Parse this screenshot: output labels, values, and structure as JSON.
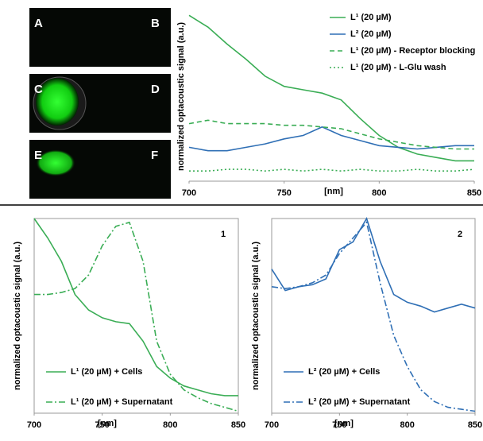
{
  "panels": {
    "labels": [
      "A",
      "B",
      "C",
      "D",
      "E",
      "F"
    ]
  },
  "chart_data": [
    {
      "type": "line",
      "y_label": "normalized optacoustic signal (a.u.)",
      "x_label": "[nm]",
      "xlim": [
        700,
        850
      ],
      "xticks": [
        700,
        750,
        800,
        850
      ],
      "ylim": [
        0,
        1
      ],
      "legend": "upper right",
      "x": [
        700,
        710,
        720,
        730,
        740,
        750,
        760,
        770,
        780,
        790,
        800,
        810,
        820,
        830,
        840,
        850
      ],
      "series": [
        {
          "name": "L¹ (20 µM)",
          "color": "#3aad55",
          "dash": "solid",
          "values": [
            0.98,
            0.91,
            0.81,
            0.72,
            0.62,
            0.56,
            0.54,
            0.52,
            0.48,
            0.37,
            0.27,
            0.2,
            0.16,
            0.14,
            0.12,
            0.12
          ]
        },
        {
          "name": "L² (20 µM)",
          "color": "#2f6fb5",
          "dash": "solid",
          "values": [
            0.2,
            0.18,
            0.18,
            0.2,
            0.22,
            0.25,
            0.27,
            0.32,
            0.27,
            0.24,
            0.21,
            0.2,
            0.19,
            0.2,
            0.21,
            0.21
          ]
        },
        {
          "name": "L¹ (20 µM) - Receptor blocking",
          "color": "#3aad55",
          "dash": "dashed",
          "values": [
            0.34,
            0.36,
            0.34,
            0.34,
            0.34,
            0.33,
            0.33,
            0.32,
            0.31,
            0.28,
            0.25,
            0.23,
            0.21,
            0.2,
            0.19,
            0.19
          ]
        },
        {
          "name": "L¹ (20 µM) - L-Glu wash",
          "color": "#3aad55",
          "dash": "dotted",
          "values": [
            0.06,
            0.06,
            0.07,
            0.07,
            0.06,
            0.07,
            0.06,
            0.07,
            0.06,
            0.07,
            0.06,
            0.06,
            0.07,
            0.06,
            0.06,
            0.07
          ]
        }
      ]
    },
    {
      "type": "line",
      "panel_label": "1",
      "y_label": "normalized optacoustic signal (a.u.)",
      "x_label": "[nm]",
      "xlim": [
        700,
        850
      ],
      "xticks": [
        700,
        750,
        800,
        850
      ],
      "ylim": [
        0,
        1
      ],
      "legend": "lower left",
      "x": [
        700,
        710,
        720,
        730,
        740,
        750,
        760,
        770,
        780,
        790,
        800,
        810,
        820,
        830,
        840,
        850
      ],
      "series": [
        {
          "name": "L¹  (20 µM) + Cells",
          "color": "#3aad55",
          "dash": "solid",
          "values": [
            1.0,
            0.9,
            0.78,
            0.61,
            0.53,
            0.49,
            0.47,
            0.46,
            0.37,
            0.24,
            0.18,
            0.14,
            0.12,
            0.1,
            0.09,
            0.09
          ]
        },
        {
          "name": "L¹  (20 µM) + Supernatant",
          "color": "#3aad55",
          "dash": "dashdot",
          "values": [
            0.61,
            0.61,
            0.62,
            0.64,
            0.71,
            0.86,
            0.96,
            0.98,
            0.78,
            0.37,
            0.2,
            0.12,
            0.08,
            0.05,
            0.03,
            0.01
          ]
        }
      ]
    },
    {
      "type": "line",
      "panel_label": "2",
      "y_label": "normalized optacoustic signal (a.u.)",
      "x_label": "[nm]",
      "xlim": [
        700,
        850
      ],
      "xticks": [
        700,
        750,
        800,
        850
      ],
      "ylim": [
        0,
        1
      ],
      "legend": "lower left",
      "x": [
        700,
        710,
        720,
        730,
        740,
        750,
        760,
        770,
        780,
        790,
        800,
        810,
        820,
        830,
        840,
        850
      ],
      "series": [
        {
          "name": "L²  (20 µM) + Cells",
          "color": "#2f6fb5",
          "dash": "solid",
          "values": [
            0.74,
            0.63,
            0.65,
            0.66,
            0.69,
            0.84,
            0.88,
            1.0,
            0.78,
            0.61,
            0.57,
            0.55,
            0.52,
            0.54,
            0.56,
            0.54
          ]
        },
        {
          "name": "L²  (20 µM) + Supernatant",
          "color": "#2f6fb5",
          "dash": "dashdot",
          "values": [
            0.65,
            0.64,
            0.65,
            0.67,
            0.71,
            0.82,
            0.9,
            0.98,
            0.67,
            0.4,
            0.24,
            0.12,
            0.06,
            0.03,
            0.02,
            0.01
          ]
        }
      ]
    }
  ]
}
